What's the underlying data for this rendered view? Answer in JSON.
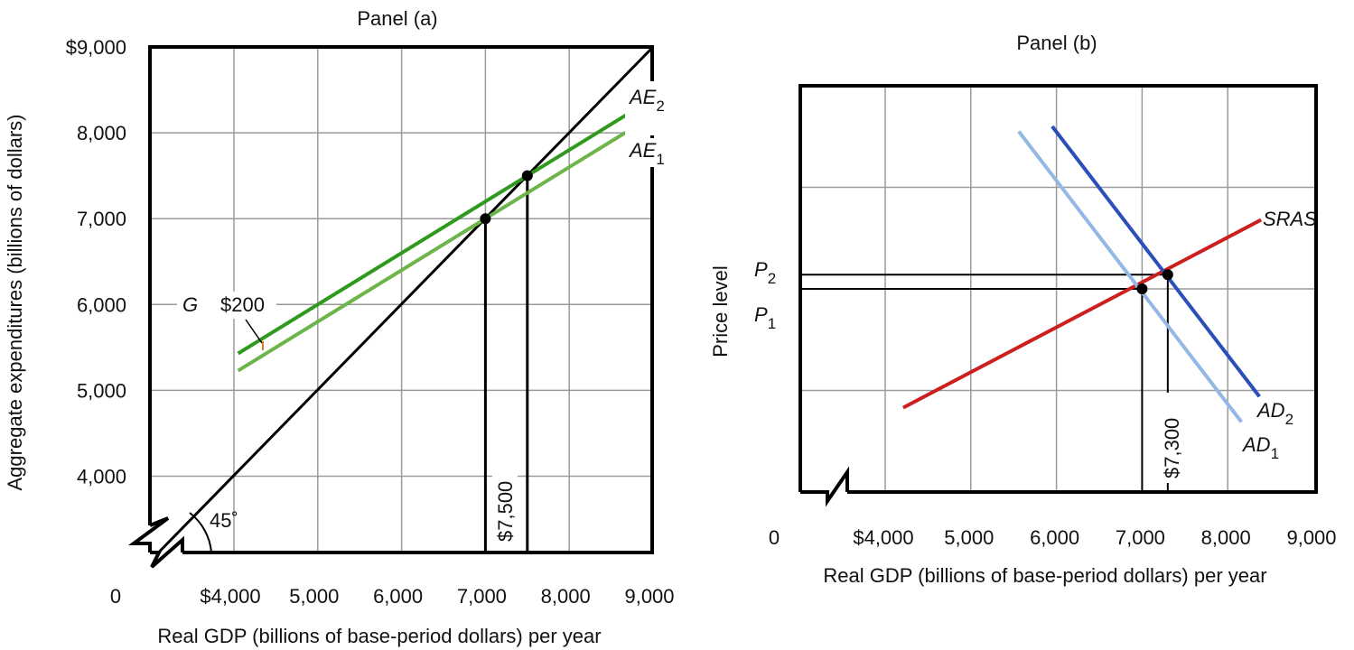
{
  "chart_data": [
    {
      "type": "line",
      "title": "Panel (a)",
      "xlabel": "Real GDP (billions of base-period dollars) per year",
      "ylabel": "Aggregate expenditures (billions of dollars)",
      "xlim": [
        3000,
        9000
      ],
      "ylim": [
        3100,
        9000
      ],
      "x_ticks": [
        "0",
        "$4,000",
        "5,000",
        "6,000",
        "7,000",
        "8,000",
        "9,000"
      ],
      "x_tick_values": [
        null,
        4000,
        5000,
        6000,
        7000,
        8000,
        9000
      ],
      "y_ticks": [
        "$9,000",
        "8,000",
        "7,000",
        "6,000",
        "5,000",
        "4,000"
      ],
      "y_tick_values": [
        9000,
        8000,
        7000,
        6000,
        5000,
        4000
      ],
      "grid": true,
      "series": [
        {
          "name": "45° line",
          "color": "#000000",
          "x": [
            3100,
            9000
          ],
          "y": [
            3100,
            9000
          ]
        },
        {
          "name": "AE1",
          "label": "AE",
          "sub": "1",
          "color": "#6db54a",
          "x": [
            4050,
            8800
          ],
          "y": [
            5230,
            8080
          ]
        },
        {
          "name": "AE2",
          "label": "AE",
          "sub": "2",
          "color": "#2f9a1e",
          "x": [
            4050,
            8700
          ],
          "y": [
            5430,
            8220
          ]
        }
      ],
      "points": [
        {
          "x": 7000,
          "y": 7000
        },
        {
          "x": 7500,
          "y": 7500
        }
      ],
      "annotations": {
        "angle": "45˚",
        "g_label": "G",
        "shift_label": "$200",
        "equilibrium_label": "$7,500"
      }
    },
    {
      "type": "line",
      "title": "Panel (b)",
      "xlabel": "Real GDP (billions of base-period dollars) per year",
      "ylabel": "Price level",
      "xlim": [
        3000,
        9000
      ],
      "ylim": [
        0,
        4
      ],
      "x_ticks": [
        "0",
        "$4,000",
        "5,000",
        "6,000",
        "7,000",
        "8,000",
        "9,000"
      ],
      "x_tick_values": [
        null,
        4000,
        5000,
        6000,
        7000,
        8000,
        9000
      ],
      "y_ticks": [
        "P",
        "P"
      ],
      "y_tick_subs": [
        "2",
        "1"
      ],
      "y_tick_values": [
        2.14,
        2.0
      ],
      "grid": true,
      "series": [
        {
          "name": "SRAS",
          "label": "SRAS",
          "color": "#cc1f1f",
          "x": [
            4210,
            8390
          ],
          "y": [
            0.83,
            2.68
          ]
        },
        {
          "name": "AD1",
          "label": "AD",
          "sub": "1",
          "color": "#94b8e6",
          "x": [
            5560,
            8160
          ],
          "y": [
            3.55,
            0.69
          ]
        },
        {
          "name": "AD2",
          "label": "AD",
          "sub": "2",
          "color": "#2a4fb8",
          "x": [
            5950,
            8370
          ],
          "y": [
            3.6,
            0.94
          ]
        }
      ],
      "points": [
        {
          "x": 7000,
          "y": 2.0
        },
        {
          "x": 7300,
          "y": 2.14
        }
      ],
      "annotations": {
        "equilibrium_label": "$7,300"
      }
    }
  ]
}
